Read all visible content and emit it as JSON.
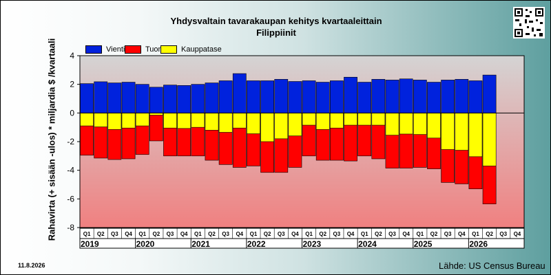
{
  "chart_data": {
    "type": "bar",
    "title": "Yhdysvaltain tavarakaupan kehitys kvartaaleittain",
    "subtitle": "Filippiinit",
    "ylabel": "Rahavirta (+ sisään -ulos)  * miljardia $ /kvartaali",
    "ylim": [
      -8,
      4
    ],
    "yticks": [
      -8,
      -6,
      -4,
      -2,
      0,
      2,
      4
    ],
    "categories": [
      "Q1",
      "Q2",
      "Q3",
      "Q4",
      "Q1",
      "Q2",
      "Q3",
      "Q4",
      "Q1",
      "Q2",
      "Q3",
      "Q4",
      "Q1",
      "Q2",
      "Q3",
      "Q4",
      "Q1",
      "Q2",
      "Q3",
      "Q4",
      "Q1",
      "Q2",
      "Q3",
      "Q4",
      "Q1",
      "Q2",
      "Q3",
      "Q4",
      "Q1",
      "Q2",
      "Q3",
      "Q4"
    ],
    "years": [
      "2019",
      "2020",
      "2021",
      "2022",
      "2023",
      "2024",
      "2025",
      "2026"
    ],
    "series": [
      {
        "name": "Vienti",
        "color": "#0022dd",
        "values": [
          2.05,
          2.18,
          2.1,
          2.15,
          2.0,
          1.8,
          1.95,
          1.92,
          2.0,
          2.1,
          2.25,
          2.75,
          2.25,
          2.25,
          2.35,
          2.2,
          2.25,
          2.15,
          2.25,
          2.5,
          2.15,
          2.35,
          2.3,
          2.38,
          2.3,
          2.15,
          2.3,
          2.35,
          2.25,
          2.65,
          null,
          null
        ]
      },
      {
        "name": "Tuonti",
        "color": "#ff0000",
        "values": [
          -2.95,
          -3.15,
          -3.25,
          -3.2,
          -2.9,
          -1.95,
          -3.0,
          -3.0,
          -3.0,
          -3.3,
          -3.6,
          -3.8,
          -3.7,
          -4.15,
          -4.15,
          -3.8,
          -3.0,
          -3.3,
          -3.3,
          -3.35,
          -3.0,
          -3.2,
          -3.85,
          -3.85,
          -3.8,
          -3.9,
          -4.85,
          -4.95,
          -5.3,
          -6.35,
          null,
          null
        ]
      },
      {
        "name": "Kauppatase",
        "color": "#ffff00",
        "values": [
          -0.9,
          -0.97,
          -1.15,
          -1.05,
          -0.9,
          -0.15,
          -1.05,
          -1.08,
          -1.0,
          -1.2,
          -1.35,
          -1.05,
          -1.45,
          -2.0,
          -1.8,
          -1.6,
          -0.85,
          -1.15,
          -1.05,
          -0.85,
          -0.85,
          -0.85,
          -1.55,
          -1.47,
          -1.5,
          -1.75,
          -2.55,
          -2.6,
          -3.05,
          -3.7,
          null,
          null
        ]
      }
    ],
    "legend": "top-left",
    "grid": false
  },
  "meta": {
    "date": "11.8.2026",
    "source": "Lähde: US Census Bureau"
  }
}
